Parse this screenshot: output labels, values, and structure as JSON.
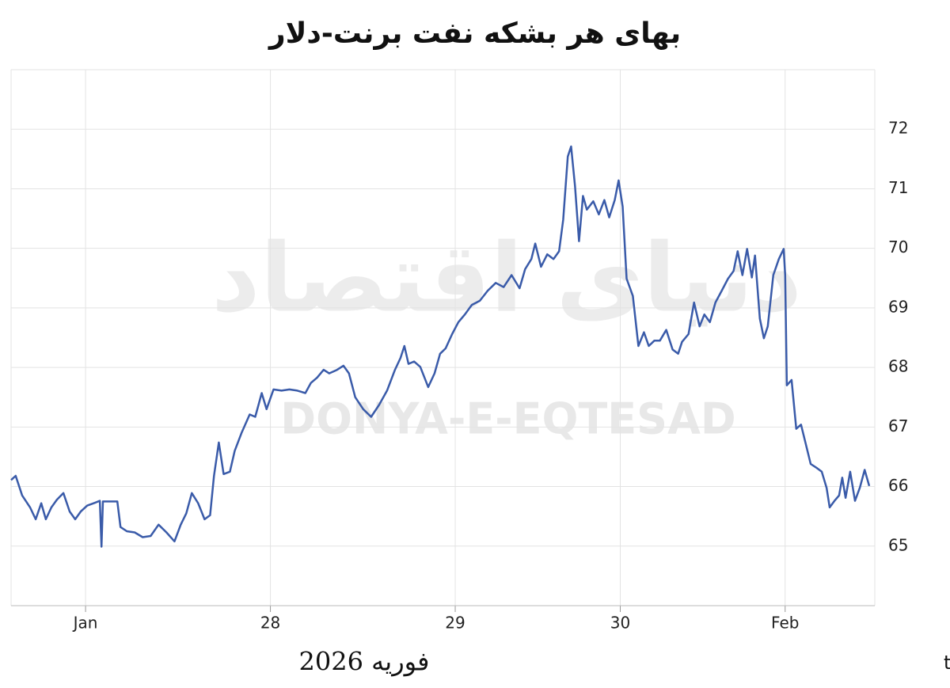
{
  "chart_data": {
    "type": "line",
    "title": "بهای هر بشکه نفت برنت-دلار",
    "footer_date": "فوریه 2026",
    "source": "منبع : tradingeconomics.com",
    "watermark": "DONYA-E-EQTESAD",
    "watermark_fa": "دنیای اقتصاد",
    "grid": true,
    "xlim": [
      -0.403,
      4.27
    ],
    "xticks": [
      {
        "value": 0,
        "label": "Jan"
      },
      {
        "value": 1,
        "label": "28"
      },
      {
        "value": 2,
        "label": "29"
      },
      {
        "value": 2.893,
        "label": "30"
      },
      {
        "value": 3.785,
        "label": "Feb"
      }
    ],
    "ylim": [
      64,
      73
    ],
    "yticks": [
      65,
      66,
      67,
      68,
      69,
      70,
      71,
      72
    ],
    "series": [
      {
        "color": "#3a5ba9",
        "x": [
          -0.403,
          -0.378,
          -0.343,
          -0.3,
          -0.27,
          -0.24,
          -0.215,
          -0.185,
          -0.155,
          -0.12,
          -0.086,
          -0.056,
          -0.026,
          0.009,
          0.052,
          0.077,
          0.086,
          0.094,
          0.172,
          0.189,
          0.223,
          0.266,
          0.309,
          0.352,
          0.395,
          0.438,
          0.481,
          0.515,
          0.545,
          0.575,
          0.609,
          0.644,
          0.674,
          0.695,
          0.721,
          0.747,
          0.781,
          0.807,
          0.845,
          0.888,
          0.918,
          0.953,
          0.979,
          1.017,
          1.06,
          1.103,
          1.146,
          1.189,
          1.219,
          1.253,
          1.288,
          1.318,
          1.361,
          1.395,
          1.425,
          1.459,
          1.502,
          1.545,
          1.588,
          1.631,
          1.674,
          1.704,
          1.725,
          1.747,
          1.777,
          1.811,
          1.854,
          1.888,
          1.918,
          1.948,
          1.983,
          2.017,
          2.052,
          2.09,
          2.133,
          2.176,
          2.219,
          2.262,
          2.305,
          2.348,
          2.378,
          2.412,
          2.433,
          2.464,
          2.498,
          2.532,
          2.562,
          2.584,
          2.609,
          2.627,
          2.648,
          2.67,
          2.691,
          2.712,
          2.747,
          2.777,
          2.807,
          2.833,
          2.863,
          2.884,
          2.906,
          2.927,
          2.961,
          2.991,
          3.021,
          3.047,
          3.077,
          3.107,
          3.142,
          3.176,
          3.206,
          3.227,
          3.262,
          3.292,
          3.322,
          3.348,
          3.378,
          3.408,
          3.442,
          3.476,
          3.506,
          3.528,
          3.554,
          3.579,
          3.605,
          3.622,
          3.648,
          3.67,
          3.691,
          3.721,
          3.751,
          3.777,
          3.785,
          3.794,
          3.82,
          3.845,
          3.871,
          3.897,
          3.923,
          3.957,
          3.983,
          4.009,
          4.026,
          4.052,
          4.077,
          4.094,
          4.112,
          4.137,
          4.163,
          4.189,
          4.215,
          4.24
        ],
        "values": [
          66.11,
          66.18,
          65.85,
          65.65,
          65.45,
          65.72,
          65.45,
          65.65,
          65.78,
          65.89,
          65.58,
          65.45,
          65.58,
          65.68,
          65.73,
          65.76,
          64.99,
          65.75,
          65.75,
          65.32,
          65.25,
          65.23,
          65.15,
          65.17,
          65.36,
          65.23,
          65.08,
          65.36,
          65.55,
          65.89,
          65.72,
          65.45,
          65.52,
          66.18,
          66.74,
          66.21,
          66.25,
          66.6,
          66.91,
          67.21,
          67.17,
          67.57,
          67.3,
          67.63,
          67.61,
          67.63,
          67.61,
          67.57,
          67.74,
          67.83,
          67.96,
          67.9,
          67.96,
          68.03,
          67.9,
          67.5,
          67.3,
          67.17,
          67.37,
          67.61,
          67.96,
          68.16,
          68.36,
          68.06,
          68.1,
          68.01,
          67.67,
          67.9,
          68.23,
          68.32,
          68.56,
          68.76,
          68.89,
          69.05,
          69.12,
          69.29,
          69.42,
          69.35,
          69.55,
          69.33,
          69.65,
          69.82,
          70.08,
          69.69,
          69.9,
          69.82,
          69.95,
          70.48,
          71.54,
          71.71,
          71.05,
          70.12,
          70.88,
          70.65,
          70.79,
          70.57,
          70.81,
          70.52,
          70.81,
          71.14,
          70.7,
          69.49,
          69.2,
          68.36,
          68.59,
          68.36,
          68.45,
          68.45,
          68.63,
          68.3,
          68.23,
          68.43,
          68.56,
          69.09,
          68.69,
          68.89,
          68.76,
          69.09,
          69.29,
          69.49,
          69.62,
          69.95,
          69.55,
          69.99,
          69.51,
          69.88,
          68.82,
          68.49,
          68.69,
          69.55,
          69.82,
          69.99,
          69.55,
          67.7,
          67.79,
          66.97,
          67.04,
          66.71,
          66.38,
          66.31,
          66.25,
          65.98,
          65.65,
          65.76,
          65.85,
          66.15,
          65.81,
          66.25,
          65.76,
          65.98,
          66.28,
          66.01
        ]
      }
    ]
  }
}
